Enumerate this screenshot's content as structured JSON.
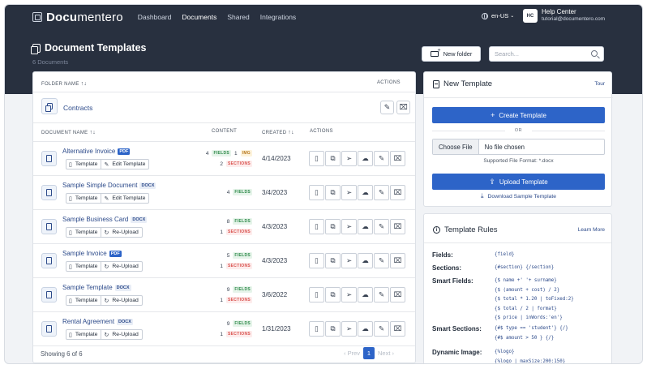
{
  "app": {
    "brand_bold": "Docu",
    "brand_thin": "",
    "brand_rest": "mentero",
    "nav": [
      "Dashboard",
      "Documents",
      "Shared",
      "Integrations"
    ],
    "active_nav": "Documents",
    "lang": "en-US",
    "avatar_initials": "HC",
    "user_name": "Help Center",
    "user_email": "tutorial@documentero.com"
  },
  "header": {
    "title": "Document Templates",
    "subtitle": "6 Documents",
    "new_folder_label": "New folder",
    "search_placeholder": "Search..."
  },
  "folders": {
    "col_name": "FOLDER NAME",
    "col_actions": "ACTIONS",
    "items": [
      {
        "name": "Contracts"
      }
    ]
  },
  "documents": {
    "col_name": "DOCUMENT NAME",
    "col_content": "CONTENT",
    "col_created": "CREATED",
    "col_actions": "ACTIONS",
    "rows": [
      {
        "name": "Alternative Invoice",
        "type": "PDF",
        "btn1": "Template",
        "btn2": "Edit Template",
        "fields": "4",
        "img": "1",
        "sections": "2",
        "created": "4/14/2023"
      },
      {
        "name": "Sample Simple Document",
        "type": "DOCX",
        "btn1": "Template",
        "btn2": "Edit Template",
        "fields": "4",
        "img": "",
        "sections": "",
        "created": "3/4/2023"
      },
      {
        "name": "Sample Business Card",
        "type": "DOCX",
        "btn1": "Template",
        "btn2": "Re-Upload",
        "fields": "8",
        "img": "",
        "sections": "1",
        "created": "4/3/2023"
      },
      {
        "name": "Sample Invoice",
        "type": "PDF",
        "btn1": "Template",
        "btn2": "Re-Upload",
        "fields": "5",
        "img": "",
        "sections": "1",
        "created": "4/3/2023"
      },
      {
        "name": "Sample Template",
        "type": "DOCX",
        "btn1": "Template",
        "btn2": "Re-Upload",
        "fields": "9",
        "img": "",
        "sections": "1",
        "created": "3/6/2022"
      },
      {
        "name": "Rental Agreement",
        "type": "DOCX",
        "btn1": "Template",
        "btn2": "Re-Upload",
        "fields": "9",
        "img": "",
        "sections": "1",
        "created": "1/31/2023"
      }
    ],
    "tag_fields": "FIELDS",
    "tag_img": "IMG",
    "tag_sections": "SECTIONS",
    "showing": "Showing 6 of 6",
    "prev": "Prev",
    "page": "1",
    "next": "Next"
  },
  "new_template": {
    "title": "New Template",
    "tour": "Tour",
    "create_label": "Create Template",
    "or": "OR",
    "choose_file": "Choose File",
    "no_file": "No file chosen",
    "supported": "Supported File Format: *.docx",
    "upload_label": "Upload Template",
    "download_sample": "Download Sample Template"
  },
  "rules": {
    "title": "Template Rules",
    "learn_more": "Learn More",
    "items": [
      {
        "label": "Fields:",
        "code": "{field}"
      },
      {
        "label": "Sections:",
        "code": "{#section} {/section}"
      },
      {
        "label": "Smart Fields:",
        "code": "{$ name +' '+ surname}\n{$ (amount + cost) / 2}\n{$ total * 1.20 | toFixed:2}\n{$ total / 2 | format}\n{$ price | inWords:'en'}"
      },
      {
        "label": "Smart Sections:",
        "code": "{#$ type == 'student'} {/}\n{#$ amount > 50 } {/}"
      },
      {
        "label": "Dynamic Image:",
        "code": "{%logo}\n{%logo | maxSize:200:150}"
      }
    ]
  }
}
